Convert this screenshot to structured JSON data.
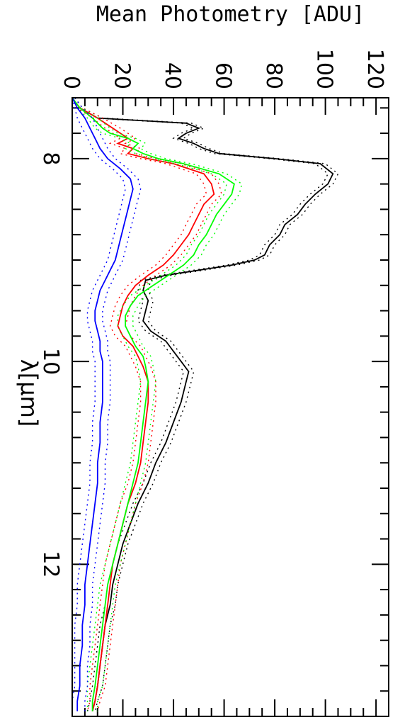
{
  "chart_data": {
    "type": "line",
    "title": "",
    "xlabel": "λ[μm]",
    "ylabel": "Mean Photometry [ADU]",
    "xlim": [
      7.4,
      13.5
    ],
    "ylim": [
      0,
      125
    ],
    "xticks": [
      8,
      10,
      12
    ],
    "yticks": [
      0,
      20,
      40,
      60,
      80,
      100,
      120
    ],
    "colors": {
      "black": "#000000",
      "red": "#ff0000",
      "green": "#00ff00",
      "blue": "#0000ff"
    },
    "series": [
      {
        "color": "black",
        "style": "solid",
        "x": [
          7.4,
          7.5,
          7.6,
          7.65,
          7.7,
          7.75,
          7.8,
          7.85,
          7.9,
          7.95,
          8.0,
          8.05,
          8.15,
          8.25,
          8.35,
          8.45,
          8.55,
          8.65,
          8.75,
          8.85,
          8.95,
          9.0,
          9.05,
          9.1,
          9.15,
          9.2,
          9.3,
          9.4,
          9.5,
          9.6,
          9.7,
          9.8,
          9.9,
          10.0,
          10.1,
          10.2,
          10.4,
          10.6,
          10.8,
          11.0,
          11.2,
          11.4,
          11.6,
          11.8,
          12.0,
          12.2,
          12.4,
          12.6,
          12.8,
          13.0,
          13.2,
          13.35,
          13.45
        ],
        "y": [
          0,
          3,
          10,
          45,
          50,
          45,
          42,
          48,
          52,
          58,
          80,
          98,
          103,
          101,
          96,
          92,
          89,
          84,
          82,
          78,
          76,
          72,
          63,
          50,
          37,
          29,
          28,
          30,
          29,
          28,
          31,
          37,
          40,
          43,
          46,
          45,
          43,
          40,
          37,
          33,
          30,
          26,
          23,
          20,
          18,
          16,
          15,
          13,
          12,
          11,
          10,
          9,
          8
        ]
      },
      {
        "color": "black",
        "style": "dotted",
        "x": [
          7.4,
          7.5,
          7.6,
          7.65,
          7.7,
          7.75,
          7.8,
          7.85,
          7.9,
          7.95,
          8.0,
          8.05,
          8.15,
          8.25,
          8.35,
          8.45,
          8.55,
          8.65,
          8.75,
          8.85,
          8.95,
          9.0,
          9.05,
          9.1,
          9.15,
          9.2,
          9.3,
          9.4,
          9.5,
          9.6,
          9.7,
          9.8,
          9.9,
          10.0,
          10.1,
          10.2,
          10.4,
          10.6,
          10.8,
          11.0,
          11.2,
          11.4,
          11.6,
          11.8,
          12.0,
          12.2,
          12.4,
          12.6,
          12.8,
          13.0,
          13.2,
          13.35,
          13.45
        ],
        "y": [
          1,
          4,
          12,
          47,
          52,
          47,
          44,
          50,
          54,
          60,
          82,
          100,
          105,
          103,
          98,
          94,
          91,
          86,
          84,
          80,
          78,
          74,
          65,
          52,
          39,
          31,
          30,
          32,
          31,
          30,
          33,
          39,
          42,
          45,
          48,
          47,
          45,
          42,
          39,
          35,
          32,
          28,
          25,
          22,
          20,
          18,
          17,
          15,
          14,
          13,
          12,
          10,
          9
        ]
      },
      {
        "color": "black",
        "style": "dotted",
        "x": [
          7.4,
          7.5,
          7.6,
          7.65,
          7.7,
          7.75,
          7.8,
          7.85,
          7.9,
          7.95,
          8.0,
          8.05,
          8.15,
          8.25,
          8.35,
          8.45,
          8.55,
          8.65,
          8.75,
          8.85,
          8.95,
          9.0,
          9.05,
          9.1,
          9.15,
          9.2,
          9.3,
          9.4,
          9.5,
          9.6,
          9.7,
          9.8,
          9.9,
          10.0,
          10.1,
          10.2,
          10.4,
          10.6,
          10.8,
          11.0,
          11.2,
          11.4,
          11.6,
          11.8,
          12.0,
          12.2,
          12.4,
          12.6,
          12.8,
          13.0,
          13.2,
          13.35,
          13.45
        ],
        "y": [
          0,
          2,
          8,
          43,
          48,
          43,
          40,
          46,
          50,
          56,
          78,
          96,
          101,
          99,
          94,
          90,
          87,
          82,
          80,
          76,
          74,
          70,
          61,
          48,
          35,
          27,
          26,
          28,
          27,
          26,
          29,
          35,
          38,
          41,
          44,
          43,
          41,
          38,
          35,
          31,
          28,
          24,
          21,
          18,
          16,
          14,
          13,
          11,
          10,
          9,
          8,
          7,
          6
        ]
      },
      {
        "color": "red",
        "style": "solid",
        "x": [
          7.4,
          7.5,
          7.6,
          7.7,
          7.8,
          7.85,
          7.9,
          7.95,
          8.0,
          8.05,
          8.15,
          8.25,
          8.35,
          8.45,
          8.55,
          8.65,
          8.75,
          8.85,
          8.95,
          9.05,
          9.15,
          9.25,
          9.35,
          9.45,
          9.55,
          9.65,
          9.75,
          9.85,
          9.95,
          10.05,
          10.2,
          10.4,
          10.6,
          10.8,
          11.0,
          11.2,
          11.4,
          11.6,
          11.8,
          12.0,
          12.2,
          12.4,
          12.6,
          12.8,
          13.0,
          13.2,
          13.35,
          13.45
        ],
        "y": [
          0,
          3,
          10,
          16,
          22,
          18,
          24,
          22,
          30,
          40,
          52,
          55,
          56,
          52,
          50,
          48,
          46,
          43,
          40,
          36,
          30,
          25,
          22,
          20,
          19,
          18,
          20,
          24,
          26,
          28,
          30,
          30,
          29,
          28,
          27,
          25,
          22,
          20,
          18,
          16,
          15,
          14,
          13,
          12,
          11,
          10,
          9,
          8
        ]
      },
      {
        "color": "red",
        "style": "dotted",
        "x": [
          7.4,
          7.5,
          7.6,
          7.7,
          7.8,
          7.85,
          7.9,
          7.95,
          8.0,
          8.05,
          8.15,
          8.25,
          8.35,
          8.45,
          8.55,
          8.65,
          8.75,
          8.85,
          8.95,
          9.05,
          9.15,
          9.25,
          9.35,
          9.45,
          9.55,
          9.65,
          9.75,
          9.85,
          9.95,
          10.05,
          10.2,
          10.4,
          10.6,
          10.8,
          11.0,
          11.2,
          11.4,
          11.6,
          11.8,
          12.0,
          12.2,
          12.4,
          12.6,
          12.8,
          13.0,
          13.2,
          13.35,
          13.45
        ],
        "y": [
          1,
          4,
          12,
          19,
          25,
          21,
          27,
          25,
          33,
          43,
          55,
          58,
          59,
          55,
          53,
          51,
          49,
          46,
          43,
          39,
          33,
          28,
          25,
          23,
          22,
          21,
          23,
          27,
          29,
          31,
          33,
          33,
          32,
          31,
          30,
          28,
          25,
          23,
          21,
          19,
          18,
          17,
          16,
          15,
          14,
          13,
          11,
          10
        ]
      },
      {
        "color": "red",
        "style": "dotted",
        "x": [
          7.4,
          7.5,
          7.6,
          7.7,
          7.8,
          7.85,
          7.9,
          7.95,
          8.0,
          8.05,
          8.15,
          8.25,
          8.35,
          8.45,
          8.55,
          8.65,
          8.75,
          8.85,
          8.95,
          9.05,
          9.15,
          9.25,
          9.35,
          9.45,
          9.55,
          9.65,
          9.75,
          9.85,
          9.95,
          10.05,
          10.2,
          10.4,
          10.6,
          10.8,
          11.0,
          11.2,
          11.4,
          11.6,
          11.8,
          12.0,
          12.2,
          12.4,
          12.6,
          12.8,
          13.0,
          13.2,
          13.35,
          13.45
        ],
        "y": [
          0,
          2,
          8,
          13,
          19,
          15,
          21,
          19,
          27,
          37,
          49,
          52,
          53,
          49,
          47,
          45,
          43,
          40,
          37,
          33,
          27,
          22,
          19,
          17,
          16,
          15,
          17,
          21,
          23,
          25,
          27,
          27,
          26,
          25,
          24,
          22,
          19,
          17,
          15,
          13,
          12,
          11,
          10,
          9,
          8,
          7,
          7,
          6
        ]
      },
      {
        "color": "green",
        "style": "solid",
        "x": [
          7.4,
          7.5,
          7.6,
          7.7,
          7.75,
          7.8,
          7.85,
          7.9,
          7.95,
          8.0,
          8.05,
          8.15,
          8.25,
          8.35,
          8.45,
          8.55,
          8.65,
          8.75,
          8.85,
          8.95,
          9.05,
          9.15,
          9.25,
          9.35,
          9.45,
          9.55,
          9.65,
          9.75,
          9.85,
          9.95,
          10.05,
          10.2,
          10.4,
          10.6,
          10.8,
          11.0,
          11.2,
          11.4,
          11.6,
          11.8,
          12.0,
          12.2,
          12.4,
          12.6,
          12.8,
          13.0,
          13.2,
          13.35,
          13.45
        ],
        "y": [
          0,
          3,
          8,
          12,
          15,
          22,
          26,
          24,
          28,
          34,
          44,
          58,
          64,
          63,
          60,
          57,
          55,
          53,
          50,
          48,
          44,
          38,
          32,
          26,
          23,
          21,
          21,
          23,
          25,
          28,
          29,
          30,
          29,
          28,
          27,
          26,
          24,
          22,
          20,
          18,
          16,
          14,
          13,
          12,
          11,
          10,
          9,
          8,
          8
        ]
      },
      {
        "color": "green",
        "style": "dotted",
        "x": [
          7.4,
          7.5,
          7.6,
          7.7,
          7.75,
          7.8,
          7.85,
          7.9,
          7.95,
          8.0,
          8.05,
          8.15,
          8.25,
          8.35,
          8.45,
          8.55,
          8.65,
          8.75,
          8.85,
          8.95,
          9.05,
          9.15,
          9.25,
          9.35,
          9.45,
          9.55,
          9.65,
          9.75,
          9.85,
          9.95,
          10.05,
          10.2,
          10.4,
          10.6,
          10.8,
          11.0,
          11.2,
          11.4,
          11.6,
          11.8,
          12.0,
          12.2,
          12.4,
          12.6,
          12.8,
          13.0,
          13.2,
          13.35,
          13.45
        ],
        "y": [
          1,
          4,
          10,
          15,
          18,
          25,
          29,
          27,
          31,
          37,
          47,
          61,
          67,
          66,
          63,
          60,
          58,
          56,
          53,
          51,
          47,
          41,
          35,
          29,
          26,
          24,
          24,
          26,
          28,
          31,
          32,
          33,
          32,
          31,
          30,
          29,
          27,
          25,
          23,
          21,
          19,
          17,
          16,
          15,
          14,
          13,
          12,
          10,
          10
        ]
      },
      {
        "color": "green",
        "style": "dotted",
        "x": [
          7.4,
          7.5,
          7.6,
          7.7,
          7.75,
          7.8,
          7.85,
          7.9,
          7.95,
          8.0,
          8.05,
          8.15,
          8.25,
          8.35,
          8.45,
          8.55,
          8.65,
          8.75,
          8.85,
          8.95,
          9.05,
          9.15,
          9.25,
          9.35,
          9.45,
          9.55,
          9.65,
          9.75,
          9.85,
          9.95,
          10.05,
          10.2,
          10.4,
          10.6,
          10.8,
          11.0,
          11.2,
          11.4,
          11.6,
          11.8,
          12.0,
          12.2,
          12.4,
          12.6,
          12.8,
          13.0,
          13.2,
          13.35,
          13.45
        ],
        "y": [
          0,
          2,
          6,
          9,
          12,
          19,
          23,
          21,
          25,
          31,
          41,
          55,
          61,
          60,
          57,
          54,
          52,
          50,
          47,
          45,
          41,
          35,
          29,
          23,
          20,
          18,
          18,
          20,
          22,
          25,
          26,
          27,
          26,
          25,
          24,
          23,
          21,
          19,
          17,
          15,
          13,
          11,
          10,
          9,
          8,
          7,
          6,
          6,
          6
        ]
      },
      {
        "color": "blue",
        "style": "solid",
        "x": [
          7.4,
          7.5,
          7.6,
          7.7,
          7.8,
          7.9,
          8.0,
          8.1,
          8.2,
          8.3,
          8.4,
          8.5,
          8.6,
          8.7,
          8.8,
          8.9,
          9.0,
          9.1,
          9.2,
          9.3,
          9.4,
          9.5,
          9.6,
          9.7,
          9.8,
          9.9,
          10.0,
          10.2,
          10.4,
          10.6,
          10.8,
          11.0,
          11.2,
          11.4,
          11.6,
          11.8,
          12.0,
          12.2,
          12.4,
          12.6,
          12.8,
          13.0,
          13.2,
          13.35,
          13.45
        ],
        "y": [
          0,
          2,
          5,
          7,
          9,
          11,
          14,
          19,
          23,
          24,
          23,
          22,
          21,
          20,
          19,
          18,
          17,
          15,
          13,
          11,
          10,
          9,
          9,
          10,
          11,
          11,
          12,
          12,
          12,
          11,
          11,
          10,
          10,
          9,
          8,
          7,
          6,
          5,
          5,
          4,
          4,
          3,
          3,
          2,
          2
        ]
      },
      {
        "color": "blue",
        "style": "dotted",
        "x": [
          7.4,
          7.5,
          7.6,
          7.7,
          7.8,
          7.9,
          8.0,
          8.1,
          8.2,
          8.3,
          8.4,
          8.5,
          8.6,
          8.7,
          8.8,
          8.9,
          9.0,
          9.1,
          9.2,
          9.3,
          9.4,
          9.5,
          9.6,
          9.7,
          9.8,
          9.9,
          10.0,
          10.2,
          10.4,
          10.6,
          10.8,
          11.0,
          11.2,
          11.4,
          11.6,
          11.8,
          12.0,
          12.2,
          12.4,
          12.6,
          12.8,
          13.0,
          13.2,
          13.35,
          13.45
        ],
        "y": [
          1,
          4,
          8,
          10,
          12,
          14,
          17,
          22,
          26,
          27,
          26,
          25,
          24,
          23,
          22,
          21,
          20,
          18,
          16,
          14,
          13,
          12,
          12,
          13,
          14,
          14,
          15,
          15,
          15,
          14,
          14,
          13,
          13,
          12,
          11,
          10,
          9,
          8,
          8,
          7,
          7,
          6,
          6,
          5,
          5
        ]
      },
      {
        "color": "blue",
        "style": "dotted",
        "x": [
          7.4,
          7.5,
          7.6,
          7.7,
          7.8,
          7.9,
          8.0,
          8.1,
          8.2,
          8.3,
          8.4,
          8.5,
          8.6,
          8.7,
          8.8,
          8.9,
          9.0,
          9.1,
          9.2,
          9.3,
          9.4,
          9.5,
          9.6,
          9.7,
          9.8,
          9.9,
          10.0,
          10.2,
          10.4,
          10.6,
          10.8,
          11.0,
          11.2,
          11.4,
          11.6,
          11.8,
          12.0,
          12.2,
          12.4,
          12.6,
          12.8,
          13.0,
          13.2,
          13.35,
          13.45
        ],
        "y": [
          0,
          1,
          2,
          4,
          6,
          8,
          11,
          16,
          20,
          21,
          20,
          19,
          18,
          17,
          16,
          15,
          14,
          12,
          10,
          8,
          7,
          6,
          6,
          7,
          8,
          8,
          9,
          9,
          9,
          8,
          8,
          7,
          7,
          6,
          5,
          4,
          3,
          2,
          2,
          1,
          1,
          1,
          1,
          0,
          0
        ]
      }
    ]
  }
}
